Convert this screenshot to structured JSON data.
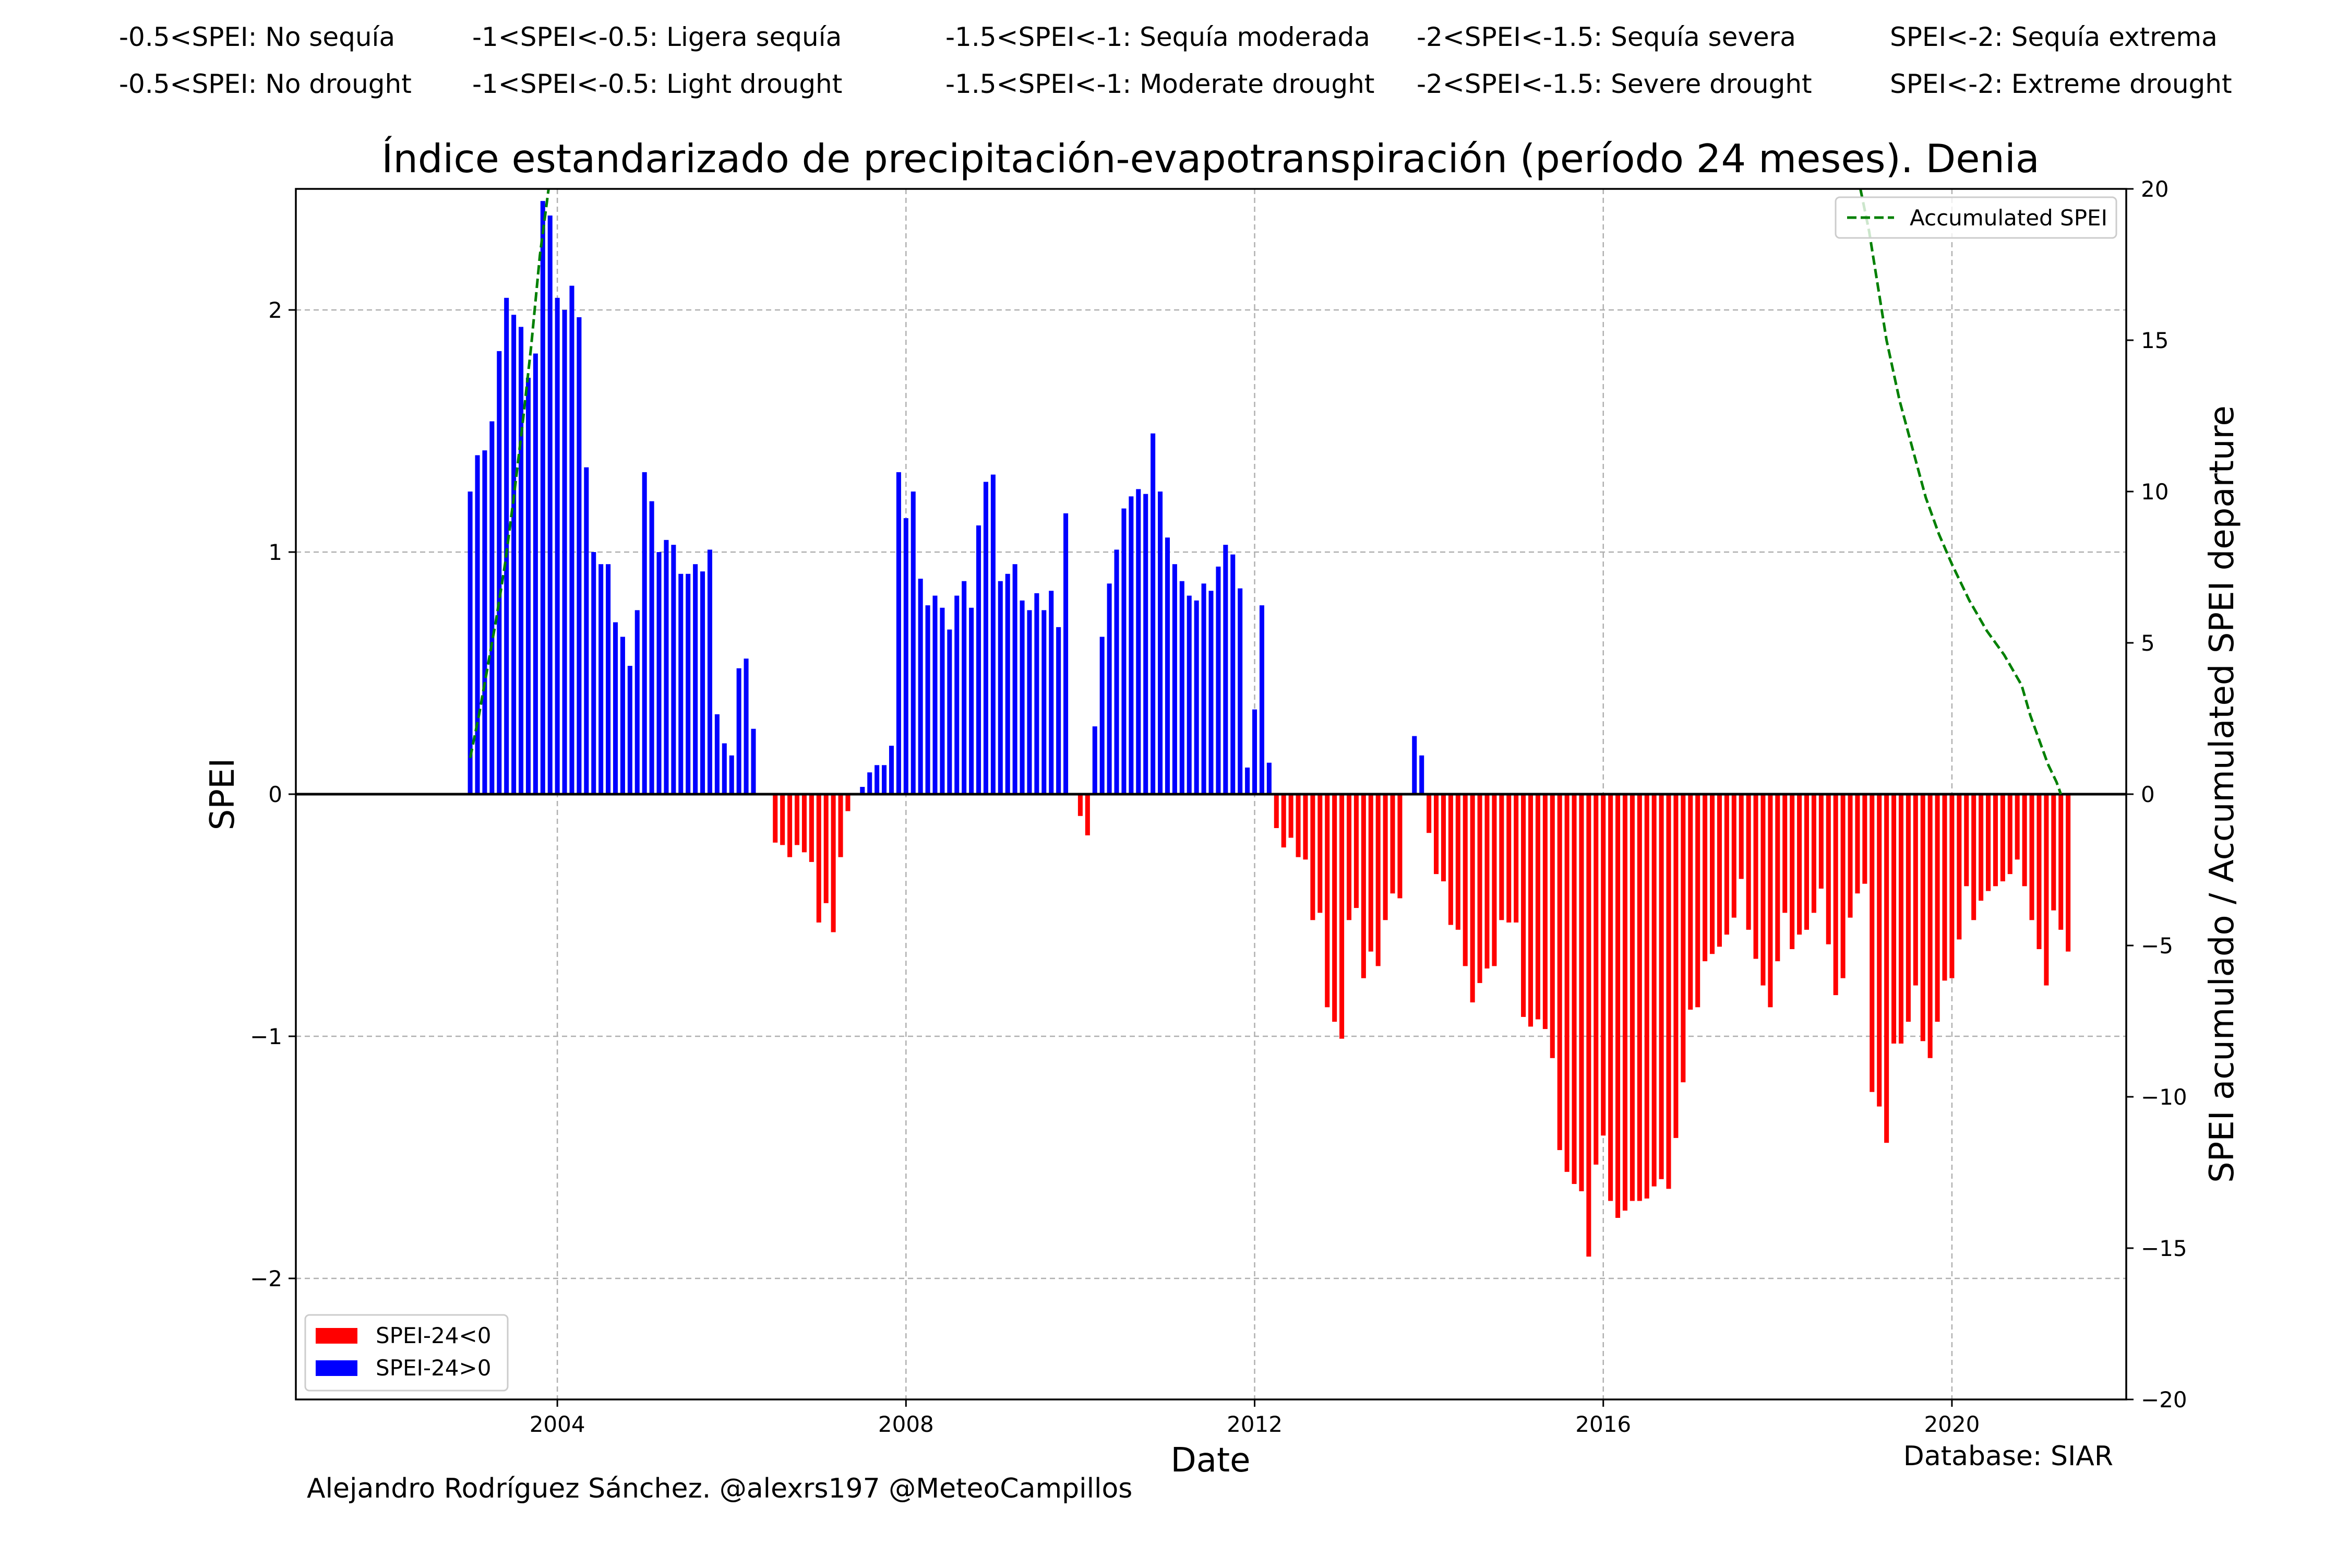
{
  "header": {
    "row_es": [
      "-0.5<SPEI: No sequía",
      "-1<SPEI<-0.5: Ligera sequía",
      "-1.5<SPEI<-1: Sequía moderada",
      "-2<SPEI<-1.5: Sequía severa",
      "SPEI<-2: Sequía extrema"
    ],
    "row_en": [
      "-0.5<SPEI: No drought",
      "-1<SPEI<-0.5: Light drought",
      "-1.5<SPEI<-1: Moderate drought",
      "-2<SPEI<-1.5: Severe drought",
      "SPEI<-2: Extreme drought"
    ]
  },
  "footer": {
    "author": "Alejandro Rodríguez Sánchez. @alexrs197 @MeteoCampillos",
    "database": "Database: SIAR"
  },
  "colors": {
    "positive": "#0000ff",
    "negative": "#ff0000",
    "accumulated": "#008000",
    "grid": "#b0b0b0",
    "zero_line": "#000000"
  },
  "chart_data": {
    "type": "bar",
    "title": "Índice estandarizado de precipitación-evapotranspiración (período 24 meses). Denia",
    "xlabel": "Date",
    "ylabel": "SPEI",
    "y2label": "SPEI acumulado / Accumulated SPEI departure",
    "xlim": [
      2001.0,
      2022.0
    ],
    "ylim": [
      -2.5,
      2.5
    ],
    "y2lim": [
      -20,
      20
    ],
    "xticks": [
      2004,
      2008,
      2012,
      2016,
      2020
    ],
    "xtick_labels": [
      "2004",
      "2008",
      "2012",
      "2016",
      "2020"
    ],
    "yticks": [
      -2,
      -1,
      0,
      1,
      2
    ],
    "ytick_labels": [
      "−2",
      "−1",
      "0",
      "1",
      "2"
    ],
    "y2ticks": [
      -20,
      -15,
      -10,
      -5,
      0,
      5,
      10,
      15,
      20
    ],
    "y2tick_labels": [
      "−20",
      "−15",
      "−10",
      "−5",
      "0",
      "5",
      "10",
      "15",
      "20"
    ],
    "grid": true,
    "legend_placement": "lower-left",
    "legend2_placement": "top-right",
    "baseline_range": [
      2001.0,
      2022.0
    ],
    "start": "2003-01",
    "series": [
      {
        "name": "SPEI-24<0",
        "color": "#ff0000"
      },
      {
        "name": "SPEI-24>0",
        "color": "#0000ff"
      }
    ],
    "spei24_monthly": [
      1.25,
      1.4,
      1.42,
      1.54,
      1.83,
      2.05,
      1.98,
      1.93,
      1.72,
      1.82,
      2.45,
      2.39,
      2.05,
      2.0,
      2.1,
      1.97,
      1.35,
      1.0,
      0.95,
      0.95,
      0.71,
      0.65,
      0.53,
      0.76,
      1.33,
      1.21,
      1.0,
      1.05,
      1.03,
      0.91,
      0.91,
      0.95,
      0.92,
      1.01,
      0.33,
      0.21,
      0.16,
      0.52,
      0.56,
      0.27,
      0.0,
      0.0,
      -0.2,
      -0.21,
      -0.26,
      -0.21,
      -0.24,
      -0.28,
      -0.53,
      -0.45,
      -0.57,
      -0.26,
      -0.07,
      0.0,
      0.03,
      0.09,
      0.12,
      0.12,
      0.2,
      1.33,
      1.14,
      1.25,
      0.89,
      0.78,
      0.82,
      0.77,
      0.68,
      0.82,
      0.88,
      0.77,
      1.11,
      1.29,
      1.32,
      0.88,
      0.91,
      0.95,
      0.8,
      0.76,
      0.83,
      0.76,
      0.84,
      0.69,
      1.16,
      0.0,
      -0.09,
      -0.17,
      0.28,
      0.65,
      0.87,
      1.01,
      1.18,
      1.23,
      1.26,
      1.24,
      1.49,
      1.25,
      1.06,
      0.95,
      0.88,
      0.82,
      0.8,
      0.87,
      0.84,
      0.94,
      1.03,
      0.99,
      0.85,
      0.11,
      0.35,
      0.78,
      0.13,
      -0.14,
      -0.22,
      -0.18,
      -0.26,
      -0.27,
      -0.52,
      -0.49,
      -0.88,
      -0.94,
      -1.01,
      -0.52,
      -0.47,
      -0.76,
      -0.65,
      -0.71,
      -0.52,
      -0.41,
      -0.43,
      0.0,
      0.24,
      0.16,
      -0.16,
      -0.33,
      -0.36,
      -0.54,
      -0.56,
      -0.71,
      -0.86,
      -0.78,
      -0.72,
      -0.71,
      -0.52,
      -0.53,
      -0.53,
      -0.92,
      -0.96,
      -0.93,
      -0.97,
      -1.09,
      -1.47,
      -1.56,
      -1.61,
      -1.64,
      -1.91,
      -1.53,
      -1.41,
      -1.68,
      -1.75,
      -1.72,
      -1.68,
      -1.68,
      -1.67,
      -1.62,
      -1.59,
      -1.63,
      -1.42,
      -1.19,
      -0.89,
      -0.88,
      -0.69,
      -0.66,
      -0.63,
      -0.58,
      -0.51,
      -0.35,
      -0.56,
      -0.68,
      -0.79,
      -0.88,
      -0.69,
      -0.49,
      -0.64,
      -0.58,
      -0.56,
      -0.49,
      -0.39,
      -0.62,
      -0.83,
      -0.76,
      -0.51,
      -0.41,
      -0.37,
      -1.23,
      -1.29,
      -1.44,
      -1.03,
      -1.03,
      -0.94,
      -0.79,
      -1.02,
      -1.09,
      -0.94,
      -0.77,
      -0.76,
      -0.6,
      -0.38,
      -0.52,
      -0.44,
      -0.4,
      -0.38,
      -0.36,
      -0.33,
      -0.27,
      -0.38,
      -0.52,
      -0.64,
      -0.79,
      -0.48,
      -0.56,
      -0.65
    ],
    "accumulated_spei": [
      [
        2003.0,
        1.2
      ],
      [
        2003.1,
        2.6
      ],
      [
        2003.2,
        4.2
      ],
      [
        2003.3,
        5.8
      ],
      [
        2003.4,
        7.6
      ],
      [
        2003.5,
        9.8
      ],
      [
        2003.6,
        12.2
      ],
      [
        2003.7,
        14.8
      ],
      [
        2003.8,
        17.8
      ],
      [
        2003.9,
        20.0
      ],
      [
        2018.95,
        20.0
      ],
      [
        2019.05,
        18.6
      ],
      [
        2019.15,
        16.8
      ],
      [
        2019.25,
        15.0
      ],
      [
        2019.4,
        13.0
      ],
      [
        2019.55,
        11.4
      ],
      [
        2019.7,
        9.8
      ],
      [
        2019.85,
        8.6
      ],
      [
        2020.0,
        7.6
      ],
      [
        2020.2,
        6.4
      ],
      [
        2020.4,
        5.4
      ],
      [
        2020.6,
        4.6
      ],
      [
        2020.8,
        3.6
      ],
      [
        2020.9,
        2.6
      ],
      [
        2021.0,
        1.8
      ],
      [
        2021.1,
        1.0
      ],
      [
        2021.2,
        0.4
      ],
      [
        2021.25,
        0.0
      ]
    ]
  }
}
